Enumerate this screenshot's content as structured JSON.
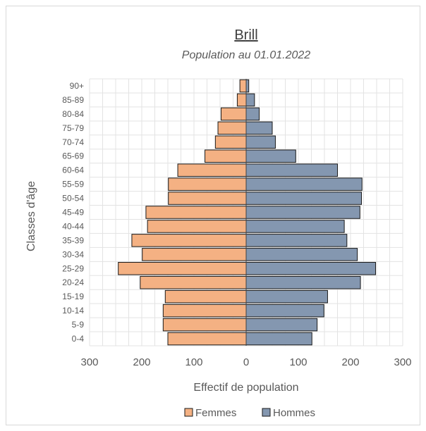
{
  "chart_data": {
    "type": "bar",
    "orientation": "horizontal",
    "title": "Brill",
    "subtitle": "Population au 01.01.2022",
    "xlabel": "Effectif de population",
    "ylabel": "Classes d'âge",
    "xlim": [
      -300,
      300
    ],
    "x_ticks": [
      -300,
      -200,
      -100,
      0,
      100,
      200,
      300
    ],
    "x_tick_labels": [
      "300",
      "200",
      "100",
      "0",
      "100",
      "200",
      "300"
    ],
    "categories": [
      "0-4",
      "5-9",
      "10-14",
      "15-19",
      "20-24",
      "25-29",
      "30-34",
      "35-39",
      "40-44",
      "45-49",
      "50-54",
      "55-59",
      "60-64",
      "65-69",
      "70-74",
      "75-79",
      "80-84",
      "85-89",
      "90+"
    ],
    "series": [
      {
        "name": "Femmes",
        "color": "#f4b183",
        "values": [
          150,
          159,
          159,
          155,
          203,
          245,
          199,
          219,
          189,
          192,
          149,
          149,
          131,
          79,
          59,
          54,
          48,
          17,
          12
        ]
      },
      {
        "name": "Hommes",
        "color": "#8497b0",
        "values": [
          126,
          136,
          149,
          156,
          219,
          248,
          213,
          193,
          188,
          218,
          221,
          222,
          175,
          95,
          56,
          50,
          25,
          16,
          5
        ]
      }
    ],
    "grid": true,
    "legend_position": "bottom"
  }
}
